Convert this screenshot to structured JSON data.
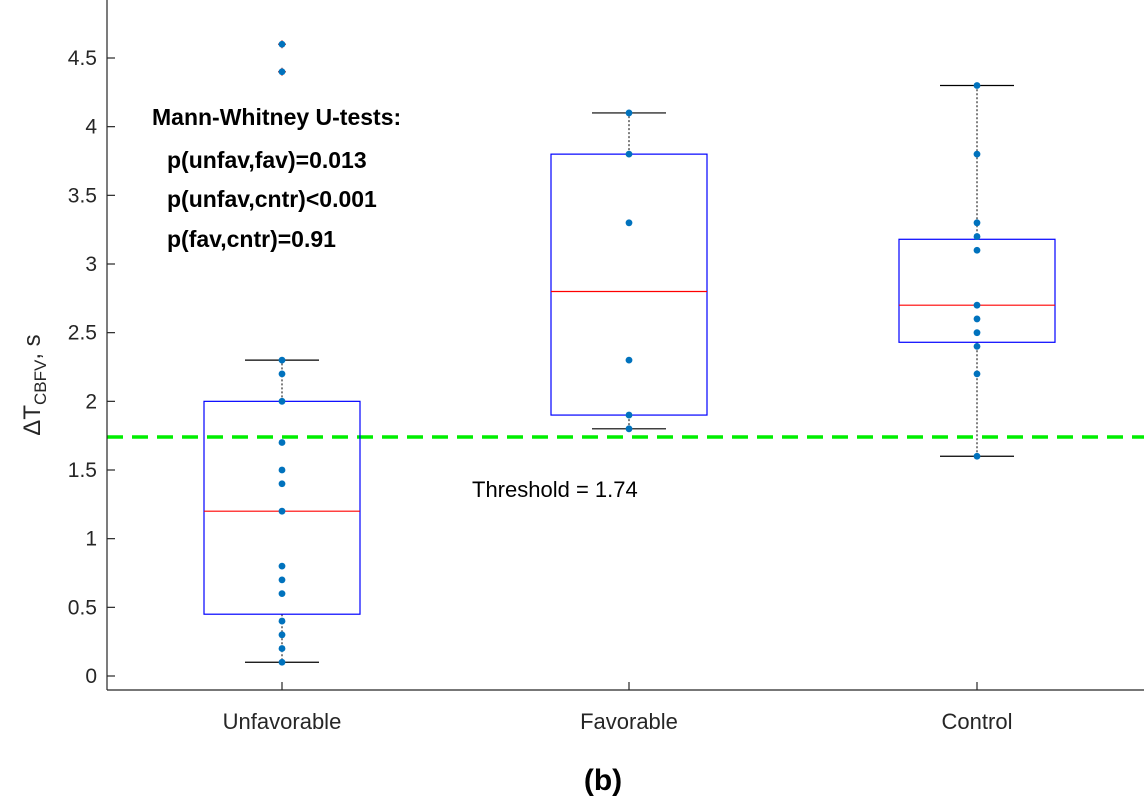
{
  "chart_data": {
    "type": "box",
    "categories": [
      "Unfavorable",
      "Favorable",
      "Control"
    ],
    "ylabel_main": "ΔT",
    "ylabel_sub": "CBFV",
    "ylabel_unit": ", s",
    "ylim": [
      -0.1,
      4.75
    ],
    "yticks": [
      0,
      0.5,
      1,
      1.5,
      2,
      2.5,
      3,
      3.5,
      4,
      4.5
    ],
    "ytick_labels": [
      "0",
      "0.5",
      "1",
      "1.5",
      "2",
      "2.5",
      "3",
      "3.5",
      "4",
      "4.5"
    ],
    "boxes": [
      {
        "name": "Unfavorable",
        "q1": 0.45,
        "median": 1.2,
        "q3": 2.0,
        "whisker_low": 0.1,
        "whisker_high": 2.3,
        "outliers": [
          4.4,
          4.6
        ],
        "points": [
          0.1,
          0.2,
          0.3,
          0.4,
          0.6,
          0.7,
          0.8,
          1.2,
          1.4,
          1.5,
          1.7,
          2.0,
          2.2,
          2.3,
          4.4,
          4.6
        ]
      },
      {
        "name": "Favorable",
        "q1": 1.9,
        "median": 2.8,
        "q3": 3.8,
        "whisker_low": 1.8,
        "whisker_high": 4.1,
        "outliers": [],
        "points": [
          1.8,
          1.9,
          2.3,
          3.3,
          3.8,
          4.1
        ]
      },
      {
        "name": "Control",
        "q1": 2.43,
        "median": 2.7,
        "q3": 3.18,
        "whisker_low": 1.6,
        "whisker_high": 4.3,
        "outliers": [],
        "points": [
          1.6,
          2.2,
          2.4,
          2.5,
          2.6,
          2.7,
          3.1,
          3.2,
          3.3,
          3.8,
          4.3
        ]
      }
    ],
    "threshold": {
      "value": 1.74,
      "label": "Threshold = 1.74",
      "color": "#00ee00"
    },
    "annotation": {
      "title": "Mann-Whitney U-tests:",
      "lines": [
        "p(unfav,fav)=0.013",
        "p(unfav,cntr)<0.001",
        "p(fav,cntr)=0.91"
      ]
    },
    "panel_label": "(b)",
    "colors": {
      "box": "#0000ff",
      "median": "#ff0000",
      "point": "#0072bd",
      "outlier": "#c0504d",
      "whisker": "#000000"
    }
  }
}
